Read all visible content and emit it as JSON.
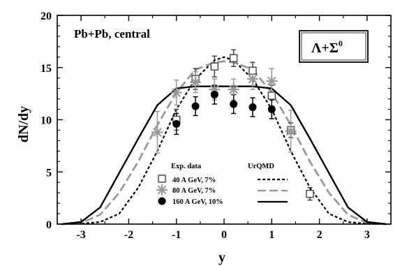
{
  "chart_data": {
    "type": "scatter",
    "title": "",
    "xlabel": "y",
    "ylabel": "dN/dy",
    "xlim": [
      -3.5,
      3.5
    ],
    "ylim": [
      0,
      20
    ],
    "xticks": [
      -3,
      -2,
      -1,
      0,
      1,
      2,
      3
    ],
    "xtick_labels": [
      "-3",
      "-2",
      "-1",
      "0",
      "1",
      "2",
      "3"
    ],
    "yticks": [
      0,
      5,
      10,
      15,
      20
    ],
    "ytick_labels": [
      "0",
      "5",
      "10",
      "15",
      "20"
    ],
    "grid": false,
    "legend_position": "bottom-center",
    "annotations": {
      "system": "Pb+Pb, central",
      "particle": "Λ+Σ",
      "particle_superscript": "0"
    },
    "legend": {
      "data_header": "Exp. data",
      "model_header": "UrQMD",
      "entries": [
        {
          "label": "40 A GeV,    7%",
          "marker": "open-square",
          "line": "short-dash"
        },
        {
          "label": "80 A GeV,    7%",
          "marker": "asterisk",
          "line": "long-dash"
        },
        {
          "label": "160 A GeV, 10%",
          "marker": "filled-circle",
          "line": "solid"
        }
      ]
    },
    "series": [
      {
        "name": "40 A GeV, 7%",
        "kind": "data",
        "marker": "open-square",
        "color": "#444444",
        "points": [
          {
            "x": -1.0,
            "y": 10.0,
            "err": 1.0
          },
          {
            "x": -0.6,
            "y": 13.9,
            "err": 1.0
          },
          {
            "x": -0.2,
            "y": 15.1,
            "err": 1.0
          },
          {
            "x": 0.2,
            "y": 15.9,
            "err": 0.8
          },
          {
            "x": 0.6,
            "y": 14.7,
            "err": 0.8
          },
          {
            "x": 1.0,
            "y": 12.3,
            "err": 1.0
          },
          {
            "x": 1.4,
            "y": 9.0,
            "err": 0.7
          },
          {
            "x": 1.8,
            "y": 2.9,
            "err": 0.6
          }
        ]
      },
      {
        "name": "80 A GeV, 7%",
        "kind": "data",
        "marker": "asterisk",
        "color": "#999999",
        "points": [
          {
            "x": -1.4,
            "y": 8.8,
            "err": 2.0
          },
          {
            "x": -1.0,
            "y": 12.6,
            "err": 1.2
          },
          {
            "x": -0.6,
            "y": 13.6,
            "err": 1.0
          },
          {
            "x": -0.2,
            "y": 12.9,
            "err": 1.0
          },
          {
            "x": 0.2,
            "y": 12.9,
            "err": 1.0
          },
          {
            "x": 0.6,
            "y": 13.9,
            "err": 1.0
          },
          {
            "x": 1.0,
            "y": 13.7,
            "err": 1.2
          },
          {
            "x": 1.4,
            "y": 8.9,
            "err": 2.0
          }
        ]
      },
      {
        "name": "160 A GeV, 10%",
        "kind": "data",
        "marker": "filled-circle",
        "color": "#000000",
        "points": [
          {
            "x": -1.0,
            "y": 9.6,
            "err": 1.0
          },
          {
            "x": -0.6,
            "y": 11.3,
            "err": 0.9
          },
          {
            "x": -0.2,
            "y": 12.4,
            "err": 0.9
          },
          {
            "x": 0.2,
            "y": 11.5,
            "err": 0.9
          },
          {
            "x": 0.6,
            "y": 11.2,
            "err": 0.9
          },
          {
            "x": 1.0,
            "y": 11.0,
            "err": 0.9
          }
        ]
      },
      {
        "name": "UrQMD 40 A GeV",
        "kind": "model",
        "line": "short-dash",
        "color": "#000000",
        "x": [
          -3.4,
          -3.0,
          -2.6,
          -2.2,
          -1.8,
          -1.4,
          -1.0,
          -0.6,
          -0.2,
          0.0,
          0.2,
          0.6,
          1.0,
          1.4,
          1.8,
          2.2,
          2.6,
          3.0,
          3.4
        ],
        "y": [
          0.0,
          0.05,
          0.2,
          1.0,
          3.5,
          7.0,
          11.0,
          13.9,
          15.7,
          16.0,
          15.7,
          13.9,
          11.0,
          7.0,
          3.5,
          1.0,
          0.2,
          0.05,
          0.0
        ]
      },
      {
        "name": "UrQMD 80 A GeV",
        "kind": "model",
        "line": "long-dash",
        "color": "#999999",
        "x": [
          -3.4,
          -3.0,
          -2.6,
          -2.2,
          -1.8,
          -1.4,
          -1.0,
          -0.6,
          -0.2,
          0.0,
          0.2,
          0.6,
          1.0,
          1.4,
          1.8,
          2.2,
          2.6,
          3.0,
          3.4
        ],
        "y": [
          0.0,
          0.1,
          0.9,
          3.0,
          6.0,
          9.5,
          12.6,
          14.8,
          15.5,
          15.6,
          15.5,
          14.8,
          12.6,
          9.5,
          6.0,
          3.0,
          0.9,
          0.1,
          0.0
        ]
      },
      {
        "name": "UrQMD 160 A GeV",
        "kind": "model",
        "line": "solid",
        "color": "#000000",
        "x": [
          -3.4,
          -3.0,
          -2.6,
          -2.2,
          -1.8,
          -1.4,
          -1.0,
          -0.6,
          -0.2,
          0.2,
          0.6,
          1.0,
          1.4,
          1.8,
          2.2,
          2.6,
          3.0,
          3.4
        ],
        "y": [
          0.0,
          0.2,
          1.6,
          4.9,
          8.2,
          11.4,
          13.0,
          13.2,
          13.2,
          13.2,
          13.2,
          13.0,
          11.4,
          8.2,
          4.9,
          1.6,
          0.2,
          0.0
        ]
      }
    ]
  }
}
